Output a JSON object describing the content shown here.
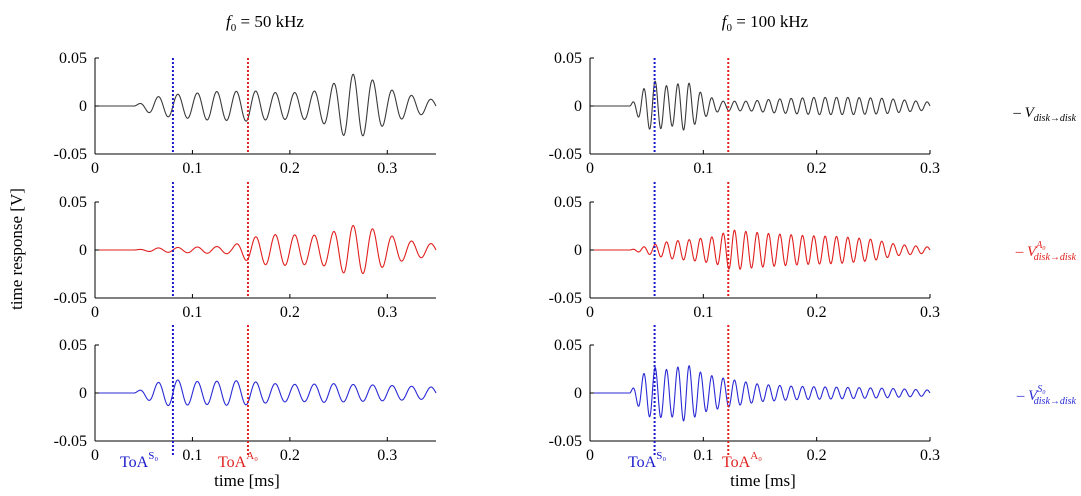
{
  "figure": {
    "ylabel": "time response [V]",
    "xlabel": "time [ms]"
  },
  "columns": [
    {
      "title_main": "f",
      "title_sub": "0",
      "title_rest": " = 50 kHz"
    },
    {
      "title_main": "f",
      "title_sub": "0",
      "title_rest": " = 100 kHz"
    }
  ],
  "legend": [
    {
      "dash": "–",
      "symbol": "V",
      "sup": "",
      "sub": "disk→disk",
      "color": "#000000"
    },
    {
      "dash": "–",
      "symbol": "V",
      "sup": "A₀",
      "sub": "disk→disk",
      "color": "#e0201e"
    },
    {
      "dash": "–",
      "symbol": "V",
      "sup": "S₀",
      "sub": "disk→disk",
      "color": "#2a2ad6"
    }
  ],
  "toa": {
    "s0": {
      "base": "ToA",
      "sup": "S₀",
      "color": "#1a1acc"
    },
    "a0": {
      "base": "ToA",
      "sup": "A₀",
      "color": "#e0201e"
    }
  },
  "chart_data": [
    {
      "type": "line",
      "panel": "50kHz-total",
      "title": "f0 = 50 kHz",
      "xlim": [
        0,
        0.35
      ],
      "ylim": [
        -0.05,
        0.05
      ],
      "xticks": [
        0,
        0.1,
        0.2,
        0.3
      ],
      "xticklabels": [
        "0",
        "0.1",
        "0.2",
        "0.3"
      ],
      "yticks": [
        -0.05,
        0,
        0.05
      ],
      "yticklabels": [
        "-0.05",
        "0",
        "0.05"
      ],
      "series": [
        {
          "color": "#3a3a3a",
          "freq_khz": 50,
          "start_ms": 0.04,
          "envelope": [
            [
              0.04,
              0
            ],
            [
              0.06,
              0.009
            ],
            [
              0.08,
              0.012
            ],
            [
              0.1,
              0.013
            ],
            [
              0.12,
              0.015
            ],
            [
              0.14,
              0.015
            ],
            [
              0.16,
              0.016
            ],
            [
              0.18,
              0.014
            ],
            [
              0.2,
              0.014
            ],
            [
              0.22,
              0.014
            ],
            [
              0.24,
              0.02
            ],
            [
              0.26,
              0.034
            ],
            [
              0.28,
              0.03
            ],
            [
              0.3,
              0.018
            ],
            [
              0.32,
              0.012
            ],
            [
              0.34,
              0.008
            ],
            [
              0.35,
              0.006
            ]
          ]
        }
      ],
      "markers": {
        "s0": 0.08,
        "a0": 0.157
      }
    },
    {
      "type": "line",
      "panel": "50kHz-A0",
      "xlim": [
        0,
        0.35
      ],
      "ylim": [
        -0.05,
        0.05
      ],
      "xticks": [
        0,
        0.1,
        0.2,
        0.3
      ],
      "xticklabels": [
        "0",
        "0.1",
        "0.2",
        "0.3"
      ],
      "yticks": [
        -0.05,
        0,
        0.05
      ],
      "yticklabels": [
        "-0.05",
        "0",
        "0.05"
      ],
      "series": [
        {
          "color": "#e0201e",
          "freq_khz": 50,
          "start_ms": 0.04,
          "envelope": [
            [
              0.04,
              0
            ],
            [
              0.06,
              0.002
            ],
            [
              0.1,
              0.003
            ],
            [
              0.14,
              0.004
            ],
            [
              0.16,
              0.013
            ],
            [
              0.18,
              0.016
            ],
            [
              0.2,
              0.016
            ],
            [
              0.22,
              0.015
            ],
            [
              0.24,
              0.017
            ],
            [
              0.26,
              0.026
            ],
            [
              0.28,
              0.024
            ],
            [
              0.3,
              0.016
            ],
            [
              0.32,
              0.01
            ],
            [
              0.35,
              0.006
            ]
          ]
        }
      ],
      "markers": {
        "s0": 0.08,
        "a0": 0.157
      }
    },
    {
      "type": "line",
      "panel": "50kHz-S0",
      "xlim": [
        0,
        0.35
      ],
      "ylim": [
        -0.05,
        0.05
      ],
      "xticks": [
        0,
        0.1,
        0.2,
        0.3
      ],
      "xticklabels": [
        "0",
        "0.1",
        "0.2",
        "0.3"
      ],
      "yticks": [
        -0.05,
        0,
        0.05
      ],
      "yticklabels": [
        "-0.05",
        "0",
        "0.05"
      ],
      "series": [
        {
          "color": "#2a2ad6",
          "freq_khz": 50,
          "start_ms": 0.04,
          "envelope": [
            [
              0.04,
              0
            ],
            [
              0.06,
              0.01
            ],
            [
              0.08,
              0.014
            ],
            [
              0.1,
              0.012
            ],
            [
              0.12,
              0.012
            ],
            [
              0.14,
              0.013
            ],
            [
              0.16,
              0.012
            ],
            [
              0.18,
              0.01
            ],
            [
              0.2,
              0.009
            ],
            [
              0.22,
              0.009
            ],
            [
              0.24,
              0.01
            ],
            [
              0.26,
              0.009
            ],
            [
              0.3,
              0.008
            ],
            [
              0.35,
              0.006
            ]
          ]
        }
      ],
      "markers": {
        "s0": 0.08,
        "a0": 0.157
      }
    },
    {
      "type": "line",
      "panel": "100kHz-total",
      "title": "f0 = 100 kHz",
      "xlim": [
        0,
        0.3
      ],
      "ylim": [
        -0.05,
        0.05
      ],
      "xticks": [
        0,
        0.1,
        0.2,
        0.3
      ],
      "xticklabels": [
        "0",
        "0.1",
        "0.2",
        "0.3"
      ],
      "yticks": [
        -0.05,
        0,
        0.05
      ],
      "yticklabels": [
        "-0.05",
        "0",
        "0.05"
      ],
      "series": [
        {
          "color": "#3a3a3a",
          "freq_khz": 100,
          "start_ms": 0.035,
          "envelope": [
            [
              0.035,
              0
            ],
            [
              0.045,
              0.015
            ],
            [
              0.055,
              0.027
            ],
            [
              0.07,
              0.02
            ],
            [
              0.085,
              0.026
            ],
            [
              0.1,
              0.012
            ],
            [
              0.115,
              0.005
            ],
            [
              0.14,
              0.005
            ],
            [
              0.16,
              0.007
            ],
            [
              0.18,
              0.008
            ],
            [
              0.2,
              0.009
            ],
            [
              0.23,
              0.009
            ],
            [
              0.26,
              0.008
            ],
            [
              0.3,
              0.004
            ]
          ]
        }
      ],
      "markers": {
        "s0": 0.057,
        "a0": 0.122
      }
    },
    {
      "type": "line",
      "panel": "100kHz-A0",
      "xlim": [
        0,
        0.3
      ],
      "ylim": [
        -0.05,
        0.05
      ],
      "xticks": [
        0,
        0.1,
        0.2,
        0.3
      ],
      "xticklabels": [
        "0",
        "0.1",
        "0.2",
        "0.3"
      ],
      "yticks": [
        -0.05,
        0,
        0.05
      ],
      "yticklabels": [
        "-0.05",
        "0",
        "0.05"
      ],
      "series": [
        {
          "color": "#e0201e",
          "freq_khz": 100,
          "start_ms": 0.035,
          "envelope": [
            [
              0.035,
              0
            ],
            [
              0.05,
              0.004
            ],
            [
              0.07,
              0.009
            ],
            [
              0.09,
              0.011
            ],
            [
              0.11,
              0.014
            ],
            [
              0.125,
              0.021
            ],
            [
              0.14,
              0.019
            ],
            [
              0.16,
              0.017
            ],
            [
              0.19,
              0.015
            ],
            [
              0.22,
              0.014
            ],
            [
              0.25,
              0.011
            ],
            [
              0.27,
              0.006
            ],
            [
              0.3,
              0.003
            ]
          ]
        }
      ],
      "markers": {
        "s0": 0.057,
        "a0": 0.122
      }
    },
    {
      "type": "line",
      "panel": "100kHz-S0",
      "xlim": [
        0,
        0.3
      ],
      "ylim": [
        -0.05,
        0.05
      ],
      "xticks": [
        0,
        0.1,
        0.2,
        0.3
      ],
      "xticklabels": [
        "0",
        "0.1",
        "0.2",
        "0.3"
      ],
      "yticks": [
        -0.05,
        0,
        0.05
      ],
      "yticklabels": [
        "-0.05",
        "0",
        "0.05"
      ],
      "series": [
        {
          "color": "#2a2ad6",
          "freq_khz": 100,
          "start_ms": 0.035,
          "envelope": [
            [
              0.035,
              0
            ],
            [
              0.045,
              0.018
            ],
            [
              0.055,
              0.027
            ],
            [
              0.07,
              0.024
            ],
            [
              0.085,
              0.03
            ],
            [
              0.1,
              0.02
            ],
            [
              0.115,
              0.016
            ],
            [
              0.13,
              0.013
            ],
            [
              0.15,
              0.009
            ],
            [
              0.18,
              0.007
            ],
            [
              0.22,
              0.006
            ],
            [
              0.26,
              0.005
            ],
            [
              0.3,
              0.003
            ]
          ]
        }
      ],
      "markers": {
        "s0": 0.057,
        "a0": 0.122
      }
    }
  ]
}
